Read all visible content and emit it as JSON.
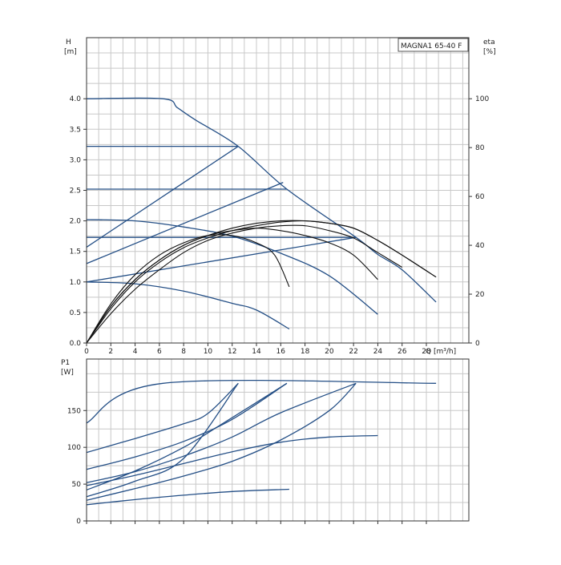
{
  "model_label": "MAGNA1 65-40 F",
  "chart_data": [
    {
      "type": "line",
      "name": "head-chart",
      "x_axis": {
        "label": "Q [m³/h]",
        "range": [
          0,
          31.5
        ],
        "ticks": [
          0,
          2,
          4,
          6,
          8,
          10,
          12,
          14,
          16,
          18,
          20,
          22,
          24,
          26,
          28
        ]
      },
      "y_axis_left": {
        "label_line1": "H",
        "label_line2": "[m]",
        "range": [
          0,
          5.0
        ],
        "ticks": [
          0.0,
          0.5,
          1.0,
          1.5,
          2.0,
          2.5,
          3.0,
          3.5,
          4.0
        ],
        "tick_labels": [
          "0.0",
          "0.5",
          "1.0",
          "1.5",
          "2.0",
          "2.5",
          "3.0",
          "3.5",
          "4.0"
        ]
      },
      "y_axis_right": {
        "label_line1": "eta",
        "label_line2": "[%]",
        "range": [
          0,
          125
        ],
        "ticks": [
          0,
          20,
          40,
          60,
          80,
          100
        ]
      },
      "grid": true,
      "head_curves": [
        {
          "points": [
            [
              0,
              4.0
            ],
            [
              6.3,
              4.0
            ],
            [
              7.5,
              3.85
            ],
            [
              9,
              3.65
            ],
            [
              12.5,
              3.22
            ],
            [
              16.5,
              2.52
            ],
            [
              22.2,
              1.73
            ],
            [
              24,
              1.45
            ],
            [
              26,
              1.2
            ],
            [
              28.8,
              0.67
            ]
          ]
        },
        {
          "points": [
            [
              0,
              3.22
            ],
            [
              12.5,
              3.22
            ]
          ]
        },
        {
          "points": [
            [
              0,
              2.52
            ],
            [
              16.5,
              2.52
            ]
          ]
        },
        {
          "points": [
            [
              0,
              1.73
            ],
            [
              22.2,
              1.73
            ]
          ]
        },
        {
          "points": [
            [
              0,
              1.57
            ],
            [
              12.5,
              3.22
            ]
          ]
        },
        {
          "points": [
            [
              0,
              1.3
            ],
            [
              16.2,
              2.63
            ]
          ]
        },
        {
          "points": [
            [
              0,
              1.0
            ],
            [
              22.2,
              1.73
            ]
          ]
        },
        {
          "points": [
            [
              0,
              2.02
            ],
            [
              4,
              2.0
            ],
            [
              8,
              1.9
            ],
            [
              12,
              1.75
            ],
            [
              16,
              1.47
            ],
            [
              20,
              1.1
            ],
            [
              24,
              0.47
            ]
          ]
        },
        {
          "points": [
            [
              0,
              1.0
            ],
            [
              4,
              0.97
            ],
            [
              8,
              0.85
            ],
            [
              12,
              0.65
            ],
            [
              14,
              0.54
            ],
            [
              16.7,
              0.23
            ]
          ]
        }
      ],
      "efficiency_curves": [
        {
          "points": [
            [
              0,
              0
            ],
            [
              2,
              15
            ],
            [
              4,
              26
            ],
            [
              6,
              34
            ],
            [
              8,
              40
            ],
            [
              10,
              44
            ],
            [
              12,
              47
            ],
            [
              14,
              49
            ],
            [
              16,
              50
            ],
            [
              18,
              50
            ],
            [
              20,
              49
            ],
            [
              22,
              47
            ],
            [
              24,
              42
            ],
            [
              26,
              36
            ],
            [
              28.8,
              27
            ]
          ]
        },
        {
          "points": [
            [
              0,
              0
            ],
            [
              2,
              14
            ],
            [
              4,
              25
            ],
            [
              6,
              33
            ],
            [
              8,
              39
            ],
            [
              10,
              43
            ],
            [
              12,
              46
            ],
            [
              14,
              48
            ],
            [
              16,
              49.5
            ],
            [
              18,
              50
            ],
            [
              20,
              49
            ],
            [
              22,
              47
            ],
            [
              24,
              42
            ],
            [
              26,
              36
            ],
            [
              28.8,
              27
            ]
          ]
        },
        {
          "points": [
            [
              0,
              0
            ],
            [
              2,
              12
            ],
            [
              4,
              22
            ],
            [
              6,
              30
            ],
            [
              8,
              37
            ],
            [
              10,
              42
            ],
            [
              12,
              45
            ],
            [
              14,
              47
            ],
            [
              16,
              48
            ],
            [
              18,
              48
            ],
            [
              20,
              46
            ],
            [
              22,
              43
            ],
            [
              24,
              37
            ],
            [
              26,
              31
            ]
          ]
        },
        {
          "points": [
            [
              0,
              0
            ],
            [
              2,
              15
            ],
            [
              4,
              26
            ],
            [
              6,
              34
            ],
            [
              8,
              40
            ],
            [
              10,
              44
            ],
            [
              12,
              46
            ],
            [
              14,
              47
            ],
            [
              16,
              46
            ],
            [
              18,
              44
            ],
            [
              20,
              41
            ],
            [
              22,
              36
            ],
            [
              24,
              26
            ]
          ]
        },
        {
          "points": [
            [
              0,
              0
            ],
            [
              2,
              16
            ],
            [
              4,
              28
            ],
            [
              6,
              36
            ],
            [
              8,
              41
            ],
            [
              10,
              44
            ],
            [
              12,
              44
            ],
            [
              14,
              41
            ],
            [
              15.5,
              36
            ],
            [
              16.7,
              23
            ]
          ]
        }
      ]
    },
    {
      "type": "line",
      "name": "power-chart",
      "x_axis": {
        "range": [
          0,
          31.5
        ]
      },
      "y_axis_left": {
        "label_line1": "P1",
        "label_line2": "[W]",
        "range": [
          0,
          220
        ],
        "ticks": [
          0,
          50,
          100,
          150
        ],
        "tick_labels": [
          "0",
          "50",
          "100",
          "150"
        ]
      },
      "grid": true,
      "power_curves": [
        {
          "points": [
            [
              0,
              133
            ],
            [
              6.3,
              187
            ],
            [
              28.8,
              187
            ]
          ]
        },
        {
          "points": [
            [
              0,
              93
            ],
            [
              4,
              112
            ],
            [
              8,
              132
            ],
            [
              10,
              146
            ],
            [
              12.5,
              187
            ]
          ]
        },
        {
          "points": [
            [
              0,
              70
            ],
            [
              4,
              87
            ],
            [
              8,
              108
            ],
            [
              12,
              138
            ],
            [
              16.5,
              187
            ]
          ]
        },
        {
          "points": [
            [
              0,
              52
            ],
            [
              4,
              67
            ],
            [
              8,
              88
            ],
            [
              12,
              114
            ],
            [
              16,
              147
            ],
            [
              22.2,
              187
            ]
          ]
        },
        {
          "points": [
            [
              0,
              33
            ],
            [
              4,
              54
            ],
            [
              8,
              85
            ],
            [
              12.5,
              187
            ]
          ]
        },
        {
          "points": [
            [
              0,
              42
            ],
            [
              4,
              68
            ],
            [
              8,
              100
            ],
            [
              11,
              130
            ],
            [
              16.5,
              187
            ]
          ]
        },
        {
          "points": [
            [
              0,
              28
            ],
            [
              4,
              44
            ],
            [
              8,
              61
            ],
            [
              12,
              81
            ],
            [
              16,
              110
            ],
            [
              20,
              150
            ],
            [
              22.2,
              187
            ]
          ]
        },
        {
          "points": [
            [
              0,
              48
            ],
            [
              4,
              62
            ],
            [
              8,
              78
            ],
            [
              12,
              94
            ],
            [
              16,
              107
            ],
            [
              20,
              114
            ],
            [
              24,
              116
            ]
          ]
        },
        {
          "points": [
            [
              0,
              22
            ],
            [
              4,
              29
            ],
            [
              8,
              35
            ],
            [
              12,
              40
            ],
            [
              16.7,
              43
            ]
          ]
        }
      ]
    }
  ]
}
